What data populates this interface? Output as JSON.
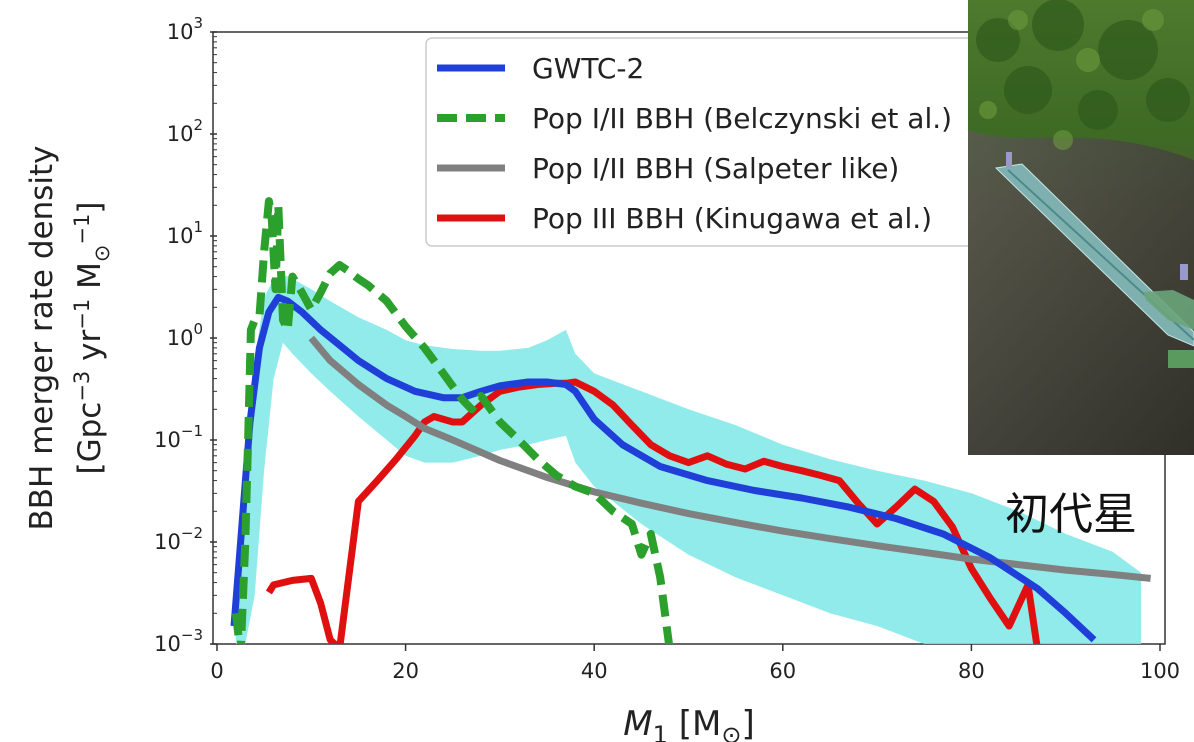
{
  "chart_data": {
    "type": "line",
    "xlabel": "M_1 [M_⊙]",
    "ylabel_line1": "BBH merger rate density",
    "ylabel_line2": "[Gpc^-3 yr^-1 M_⊙^-1]",
    "xlim": [
      0,
      100
    ],
    "ylim_log10": [
      -3,
      3
    ],
    "y_scale": "log",
    "grid": false,
    "legend_position": "top-right",
    "x_ticks": [
      0,
      20,
      40,
      60,
      80,
      100
    ],
    "y_ticks_log10": [
      -3,
      -2,
      -1,
      0,
      1,
      2,
      3
    ],
    "band": {
      "color": "#7ee8e8",
      "x": [
        2,
        3,
        4,
        5,
        6,
        7,
        8,
        10,
        12,
        15,
        18,
        20,
        22,
        25,
        28,
        30,
        33,
        35,
        37,
        38,
        40,
        45,
        50,
        55,
        60,
        65,
        70,
        75,
        80,
        85,
        90,
        95,
        98
      ],
      "upper": [
        0.002,
        0.05,
        0.6,
        2.5,
        3.8,
        4.2,
        3.8,
        3.0,
        2.3,
        1.6,
        1.2,
        0.95,
        0.85,
        0.78,
        0.75,
        0.75,
        0.8,
        0.95,
        1.2,
        0.7,
        0.45,
        0.3,
        0.2,
        0.14,
        0.09,
        0.065,
        0.05,
        0.04,
        0.03,
        0.02,
        0.012,
        0.008,
        0.005
      ],
      "lower": [
        0.001,
        0.001,
        0.003,
        0.05,
        0.4,
        0.9,
        0.7,
        0.45,
        0.3,
        0.17,
        0.1,
        0.07,
        0.06,
        0.06,
        0.07,
        0.08,
        0.09,
        0.1,
        0.11,
        0.06,
        0.035,
        0.015,
        0.0075,
        0.0045,
        0.003,
        0.002,
        0.0015,
        0.001,
        0.001,
        0.001,
        0.001,
        0.001,
        0.001
      ]
    },
    "series": [
      {
        "name": "GWTC-2",
        "color": "#1f3fd8",
        "style": "solid",
        "x": [
          1.8,
          2.5,
          3.5,
          4.5,
          5.5,
          6.5,
          7.5,
          9,
          11,
          13,
          15,
          18,
          21,
          24,
          26,
          28,
          30,
          33,
          35,
          37,
          38,
          40,
          43,
          47,
          52,
          57,
          62,
          67,
          72,
          77,
          82,
          87,
          90,
          93
        ],
        "y": [
          0.0015,
          0.01,
          0.15,
          0.8,
          1.8,
          2.5,
          2.3,
          1.8,
          1.2,
          0.85,
          0.6,
          0.4,
          0.3,
          0.26,
          0.26,
          0.3,
          0.34,
          0.37,
          0.37,
          0.35,
          0.3,
          0.16,
          0.09,
          0.055,
          0.04,
          0.032,
          0.027,
          0.022,
          0.017,
          0.012,
          0.007,
          0.0035,
          0.002,
          0.0011
        ]
      },
      {
        "name": "Pop I/II BBH (Belczynski et al.)",
        "color": "#2ca02c",
        "style": "dashed",
        "x": [
          2,
          2.5,
          3,
          3.3,
          3.6,
          4,
          4.5,
          5,
          5.5,
          5.8,
          6.2,
          6.5,
          7,
          7.5,
          8,
          9,
          10,
          11,
          12,
          13,
          14,
          15,
          16,
          18,
          20,
          22,
          24,
          26,
          27,
          28,
          30,
          32,
          34,
          36,
          38,
          40,
          42,
          44,
          45,
          46,
          47,
          48
        ],
        "y": [
          0.002,
          0.0008,
          0.01,
          0.1,
          1.2,
          1.5,
          1.6,
          7,
          22,
          15,
          3,
          20,
          1.5,
          1.2,
          4,
          2.8,
          1.9,
          2.8,
          4.3,
          5.2,
          4.5,
          3.8,
          3.3,
          2.3,
          1.3,
          0.8,
          0.45,
          0.25,
          0.2,
          0.27,
          0.15,
          0.1,
          0.065,
          0.045,
          0.035,
          0.03,
          0.02,
          0.015,
          0.0075,
          0.012,
          0.0045,
          0.0009
        ]
      },
      {
        "name": "Pop I/II BBH  (Salpeter like)",
        "color": "#808080",
        "style": "solid",
        "x": [
          10,
          12,
          15,
          18,
          20,
          22,
          25,
          30,
          35,
          40,
          45,
          50,
          55,
          60,
          65,
          70,
          75,
          80,
          85,
          90,
          95,
          99
        ],
        "y": [
          1.0,
          0.6,
          0.35,
          0.22,
          0.17,
          0.13,
          0.1,
          0.063,
          0.043,
          0.031,
          0.024,
          0.019,
          0.0155,
          0.0128,
          0.0108,
          0.0092,
          0.0079,
          0.0068,
          0.006,
          0.0053,
          0.0048,
          0.0044
        ]
      },
      {
        "name": "Pop III BBH (Kinugawa et al.)",
        "color": "#e01010",
        "style": "solid",
        "x": [
          5.5,
          6,
          7,
          8,
          9,
          10,
          11,
          12,
          13,
          15,
          17,
          19,
          21,
          22,
          23,
          24,
          25,
          26,
          28,
          30,
          32,
          34,
          36,
          37,
          38,
          40,
          42,
          44,
          46,
          48,
          50,
          52,
          54,
          56,
          58,
          60,
          62,
          64,
          66,
          68,
          70,
          72,
          74,
          76,
          78,
          80,
          82,
          84,
          86,
          87
        ],
        "y": [
          0.0032,
          0.0038,
          0.004,
          0.0042,
          0.0043,
          0.0044,
          0.0025,
          0.0011,
          0.0009,
          0.025,
          0.04,
          0.065,
          0.11,
          0.15,
          0.17,
          0.16,
          0.15,
          0.15,
          0.22,
          0.3,
          0.33,
          0.35,
          0.36,
          0.36,
          0.37,
          0.3,
          0.22,
          0.14,
          0.09,
          0.07,
          0.06,
          0.07,
          0.058,
          0.052,
          0.062,
          0.055,
          0.05,
          0.045,
          0.04,
          0.024,
          0.015,
          0.022,
          0.033,
          0.025,
          0.014,
          0.0055,
          0.0028,
          0.0015,
          0.0038,
          0.0009
        ]
      }
    ]
  },
  "caption": "初代星",
  "photo": {
    "icon": "detector-facility-aerial-photo"
  }
}
